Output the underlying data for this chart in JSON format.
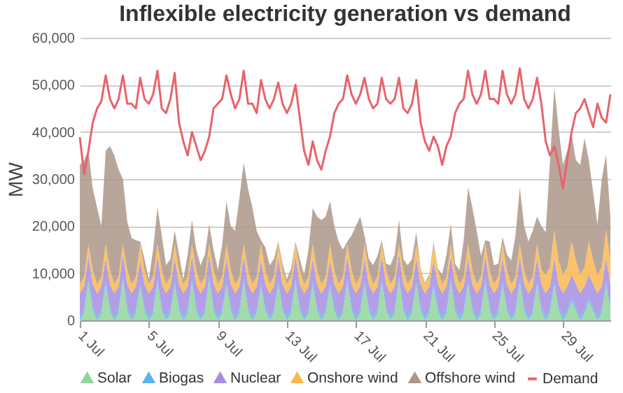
{
  "chart_data": {
    "type": "area",
    "title": "Inflexible electricity generation vs demand",
    "ylabel": "MW",
    "stacked": true,
    "grid": "y",
    "legend": "bottom",
    "x": [
      "--07-01T00:00",
      "--07-01T06:00",
      "--07-01T12:00",
      "--07-01T18:00",
      "--07-02T00:00",
      "--07-02T06:00",
      "--07-02T12:00",
      "--07-02T18:00",
      "--07-03T00:00",
      "--07-03T06:00",
      "--07-03T12:00",
      "--07-03T18:00",
      "--07-04T00:00",
      "--07-04T06:00",
      "--07-04T12:00",
      "--07-04T18:00",
      "--07-05T00:00",
      "--07-05T06:00",
      "--07-05T12:00",
      "--07-05T18:00",
      "--07-06T00:00",
      "--07-06T06:00",
      "--07-06T12:00",
      "--07-06T18:00",
      "--07-07T00:00",
      "--07-07T06:00",
      "--07-07T12:00",
      "--07-07T18:00",
      "--07-08T00:00",
      "--07-08T06:00",
      "--07-08T12:00",
      "--07-08T18:00",
      "--07-09T00:00",
      "--07-09T06:00",
      "--07-09T12:00",
      "--07-09T18:00",
      "--07-10T00:00",
      "--07-10T06:00",
      "--07-10T12:00",
      "--07-10T18:00",
      "--07-11T00:00",
      "--07-11T06:00",
      "--07-11T12:00",
      "--07-11T18:00",
      "--07-12T00:00",
      "--07-12T06:00",
      "--07-12T12:00",
      "--07-12T18:00",
      "--07-13T00:00",
      "--07-13T06:00",
      "--07-13T12:00",
      "--07-13T18:00",
      "--07-14T00:00",
      "--07-14T06:00",
      "--07-14T12:00",
      "--07-14T18:00",
      "--07-15T00:00",
      "--07-15T06:00",
      "--07-15T12:00",
      "--07-15T18:00",
      "--07-16T00:00",
      "--07-16T06:00",
      "--07-16T12:00",
      "--07-16T18:00",
      "--07-17T00:00",
      "--07-17T06:00",
      "--07-17T12:00",
      "--07-17T18:00",
      "--07-18T00:00",
      "--07-18T06:00",
      "--07-18T12:00",
      "--07-18T18:00",
      "--07-19T00:00",
      "--07-19T06:00",
      "--07-19T12:00",
      "--07-19T18:00",
      "--07-20T00:00",
      "--07-20T06:00",
      "--07-20T12:00",
      "--07-20T18:00",
      "--07-21T00:00",
      "--07-21T06:00",
      "--07-21T12:00",
      "--07-21T18:00",
      "--07-22T00:00",
      "--07-22T06:00",
      "--07-22T12:00",
      "--07-22T18:00",
      "--07-23T00:00",
      "--07-23T06:00",
      "--07-23T12:00",
      "--07-23T18:00",
      "--07-24T00:00",
      "--07-24T06:00",
      "--07-24T12:00",
      "--07-24T18:00",
      "--07-25T00:00",
      "--07-25T06:00",
      "--07-25T12:00",
      "--07-25T18:00",
      "--07-26T00:00",
      "--07-26T06:00",
      "--07-26T12:00",
      "--07-26T18:00",
      "--07-27T00:00",
      "--07-27T06:00",
      "--07-27T12:00",
      "--07-27T18:00",
      "--07-28T00:00",
      "--07-28T06:00",
      "--07-28T12:00",
      "--07-28T18:00",
      "--07-29T00:00",
      "--07-29T06:00",
      "--07-29T12:00",
      "--07-29T18:00",
      "--07-30T00:00",
      "--07-30T06:00",
      "--07-30T12:00",
      "--07-30T18:00",
      "--07-31T00:00",
      "--07-31T06:00",
      "--07-31T12:00",
      "--07-31T18:00"
    ],
    "xlim": [
      "--07-01T00:00",
      "--07-31T18:00"
    ],
    "xticks": [
      {
        "value": "--07-01",
        "label": "1 Jul"
      },
      {
        "value": "--07-05",
        "label": "5 Jul"
      },
      {
        "value": "--07-09",
        "label": "9 Jul"
      },
      {
        "value": "--07-13",
        "label": "13 Jul"
      },
      {
        "value": "--07-17",
        "label": "17 Jul"
      },
      {
        "value": "--07-21",
        "label": "21 Jul"
      },
      {
        "value": "--07-25",
        "label": "25 Jul"
      },
      {
        "value": "--07-29",
        "label": "29 Jul"
      }
    ],
    "ylim": [
      0,
      60000
    ],
    "yticks": [
      0,
      {
        "value": 10000,
        "label": "10,000"
      },
      {
        "value": 20000,
        "label": "20,000"
      },
      {
        "value": 30000,
        "label": "30,000"
      },
      {
        "value": 40000,
        "label": "40,000"
      },
      {
        "value": 50000,
        "label": "50,000"
      },
      {
        "value": 60000,
        "label": "60,000"
      }
    ],
    "series": [
      {
        "name": "Solar",
        "color": "#90d69a",
        "values": [
          0,
          1500,
          8000,
          2000,
          0,
          1500,
          7500,
          2000,
          0,
          1500,
          8500,
          2000,
          0,
          1500,
          7000,
          2000,
          0,
          1500,
          8000,
          2000,
          0,
          1500,
          7500,
          2000,
          0,
          1500,
          8000,
          2000,
          0,
          1500,
          8500,
          2000,
          0,
          1500,
          7500,
          2000,
          0,
          1500,
          8000,
          2000,
          0,
          1500,
          7000,
          2000,
          0,
          1500,
          7500,
          2000,
          0,
          1500,
          8000,
          2000,
          0,
          1500,
          7500,
          2000,
          0,
          1500,
          7000,
          2000,
          0,
          1500,
          8000,
          2000,
          0,
          1500,
          7500,
          2000,
          0,
          1500,
          8000,
          2000,
          0,
          1500,
          8500,
          2000,
          0,
          1500,
          7500,
          2000,
          0,
          1500,
          7000,
          2000,
          0,
          1500,
          8000,
          2000,
          0,
          1500,
          7500,
          2000,
          0,
          1500,
          8000,
          2000,
          0,
          1500,
          7500,
          2000,
          0,
          1500,
          8000,
          2000,
          0,
          1500,
          7500,
          2000,
          0,
          1500,
          7500,
          2000,
          0,
          1500,
          4000,
          2000,
          0,
          1500,
          4000,
          2000,
          0,
          1500,
          7500,
          2000
        ]
      },
      {
        "name": "Biogas",
        "color": "#5ab4ec",
        "values": [
          700,
          700,
          700,
          700,
          700,
          700,
          700,
          700,
          700,
          700,
          700,
          700,
          700,
          700,
          700,
          700,
          700,
          700,
          700,
          700,
          700,
          700,
          700,
          700,
          700,
          700,
          700,
          700,
          700,
          700,
          700,
          700,
          700,
          700,
          700,
          700,
          700,
          700,
          700,
          700,
          700,
          700,
          700,
          700,
          700,
          700,
          700,
          700,
          700,
          700,
          700,
          700,
          700,
          700,
          700,
          700,
          700,
          700,
          700,
          700,
          700,
          700,
          700,
          700,
          700,
          700,
          700,
          700,
          700,
          700,
          700,
          700,
          700,
          700,
          700,
          700,
          700,
          700,
          700,
          700,
          700,
          700,
          700,
          700,
          700,
          700,
          700,
          700,
          700,
          700,
          700,
          700,
          700,
          700,
          700,
          700,
          700,
          700,
          700,
          700,
          700,
          700,
          700,
          700,
          700,
          700,
          700,
          700,
          700,
          700,
          700,
          700,
          700,
          700,
          700,
          700,
          700,
          700,
          700,
          700,
          700,
          700,
          700,
          700
        ]
      },
      {
        "name": "Nuclear",
        "color": "#a58ee0",
        "values": [
          5000,
          5000,
          5000,
          5000,
          5000,
          5000,
          5000,
          5000,
          5000,
          5000,
          5000,
          5000,
          5000,
          5000,
          5000,
          5000,
          5000,
          5000,
          5000,
          5000,
          5000,
          5000,
          5000,
          5000,
          5000,
          5000,
          5000,
          5000,
          5000,
          5000,
          5000,
          5000,
          5000,
          5000,
          5000,
          5000,
          5000,
          5000,
          5000,
          5000,
          5000,
          5000,
          5000,
          5000,
          5000,
          5000,
          5000,
          5000,
          5000,
          5000,
          5000,
          5000,
          5000,
          5000,
          5000,
          5000,
          5000,
          5000,
          5000,
          5000,
          5000,
          5000,
          5000,
          5000,
          5000,
          5000,
          5000,
          5000,
          5000,
          5000,
          5000,
          5000,
          5000,
          5000,
          5000,
          5000,
          5000,
          5000,
          5000,
          5000,
          5000,
          5000,
          5000,
          5000,
          5000,
          5000,
          5000,
          5000,
          5000,
          5000,
          5000,
          5000,
          5000,
          5000,
          5000,
          5000,
          5000,
          5000,
          5000,
          5000,
          5000,
          5000,
          5000,
          5000,
          5000,
          5000,
          5000,
          5000,
          5000,
          5000,
          5000,
          5000,
          5000,
          5000,
          5000,
          5000,
          5000,
          5000,
          5000,
          5000,
          5000,
          5000,
          5000,
          5000
        ]
      },
      {
        "name": "Onshore wind",
        "color": "#f9b84f",
        "values": [
          2000,
          2000,
          2500,
          3000,
          2000,
          2000,
          3000,
          3000,
          2000,
          2000,
          2000,
          3000,
          2000,
          2000,
          3500,
          3000,
          2000,
          2000,
          2500,
          3000,
          2000,
          2000,
          3000,
          3000,
          2000,
          2000,
          2500,
          3000,
          2000,
          2000,
          2000,
          3000,
          2000,
          2000,
          3000,
          3000,
          2000,
          2000,
          2500,
          3000,
          2000,
          2000,
          3500,
          3000,
          2000,
          2000,
          3000,
          3000,
          2000,
          2000,
          2500,
          3000,
          2000,
          2000,
          3000,
          3000,
          2000,
          2000,
          3500,
          3000,
          2000,
          2000,
          2500,
          3000,
          2000,
          2000,
          3000,
          3000,
          2000,
          2000,
          2500,
          3000,
          2000,
          2000,
          2000,
          3000,
          2000,
          2000,
          3000,
          3000,
          2000,
          2000,
          3500,
          3000,
          2000,
          2000,
          2500,
          3000,
          2000,
          2000,
          3000,
          3000,
          2000,
          2000,
          2500,
          3000,
          2000,
          2000,
          3000,
          3000,
          2000,
          2000,
          2500,
          3000,
          2000,
          2000,
          3000,
          3000,
          4000,
          4000,
          6000,
          5000,
          4000,
          4000,
          7000,
          5000,
          4000,
          4000,
          7000,
          5000,
          4000,
          4000,
          6000,
          5000
        ]
      },
      {
        "name": "Offshore wind",
        "color": "#ad968a",
        "values": [
          25300,
          24800,
          19800,
          17300,
          16300,
          10800,
          19800,
          26300,
          27300,
          22800,
          13800,
          10300,
          9800,
          7800,
          500,
          2300,
          1000,
          5800,
          7800,
          7300,
          4000,
          3800,
          2800,
          3300,
          1000,
          4800,
          5100,
          4300,
          4000,
          4800,
          4200,
          4300,
          3000,
          6800,
          9100,
          9300,
          11300,
          16800,
          17300,
          17300,
          16300,
          9800,
          800,
          4800,
          4000,
          3800,
          500,
          1300,
          1000,
          1800,
          500,
          2300,
          2000,
          5800,
          7600,
          11300,
          13600,
          12800,
          9100,
          9300,
          9000,
          5800,
          500,
          7300,
          12300,
          12800,
          1800,
          2300,
          4000,
          4500,
          800,
          1300,
          4000,
          4800,
          5100,
          2300,
          4000,
          3800,
          2500,
          300,
          300,
          500,
          500,
          300,
          2000,
          4800,
          4200,
          1300,
          3000,
          7800,
          12000,
          13300,
          11300,
          4500,
          800,
          6000,
          4000,
          2800,
          1500,
          3300,
          5000,
          8800,
          12000,
          9300,
          9000,
          9800,
          5800,
          9300,
          9000,
          22800,
          30300,
          28000,
          23300,
          24800,
          23000,
          21300,
          23300,
          27500,
          17300,
          14500,
          10700,
          18800,
          16000,
          9300
        ]
      },
      {
        "name": "Demand",
        "type": "line",
        "color": "#e8636a",
        "values": [
          38900,
          31000,
          36000,
          42000,
          45000,
          46500,
          52000,
          47000,
          45000,
          47000,
          52000,
          46000,
          46000,
          45000,
          51500,
          47000,
          46000,
          48000,
          53000,
          45000,
          44000,
          47000,
          52500,
          42000,
          38000,
          35000,
          40000,
          37000,
          34000,
          36000,
          39000,
          45000,
          46000,
          47000,
          52000,
          48000,
          45000,
          47000,
          53000,
          46000,
          46000,
          44000,
          51000,
          47000,
          45000,
          47000,
          50500,
          46000,
          44000,
          46000,
          50000,
          43000,
          36000,
          33000,
          38000,
          34000,
          32000,
          36000,
          39000,
          44000,
          46000,
          47000,
          52000,
          48000,
          46000,
          48000,
          51500,
          47000,
          45000,
          46000,
          51500,
          47000,
          46000,
          47000,
          51500,
          45000,
          44000,
          46000,
          51000,
          42000,
          38000,
          36000,
          39000,
          37000,
          33000,
          37000,
          39000,
          44000,
          46000,
          47000,
          53000,
          48000,
          46000,
          48000,
          53000,
          47000,
          47000,
          46000,
          53000,
          48000,
          46000,
          48000,
          53500,
          47000,
          45000,
          47000,
          51500,
          46000,
          38000,
          35000,
          37000,
          33000,
          28000,
          34000,
          40000,
          44000,
          45000,
          47000,
          44000,
          41000,
          46000,
          43000,
          42000,
          48000
        ]
      }
    ]
  }
}
